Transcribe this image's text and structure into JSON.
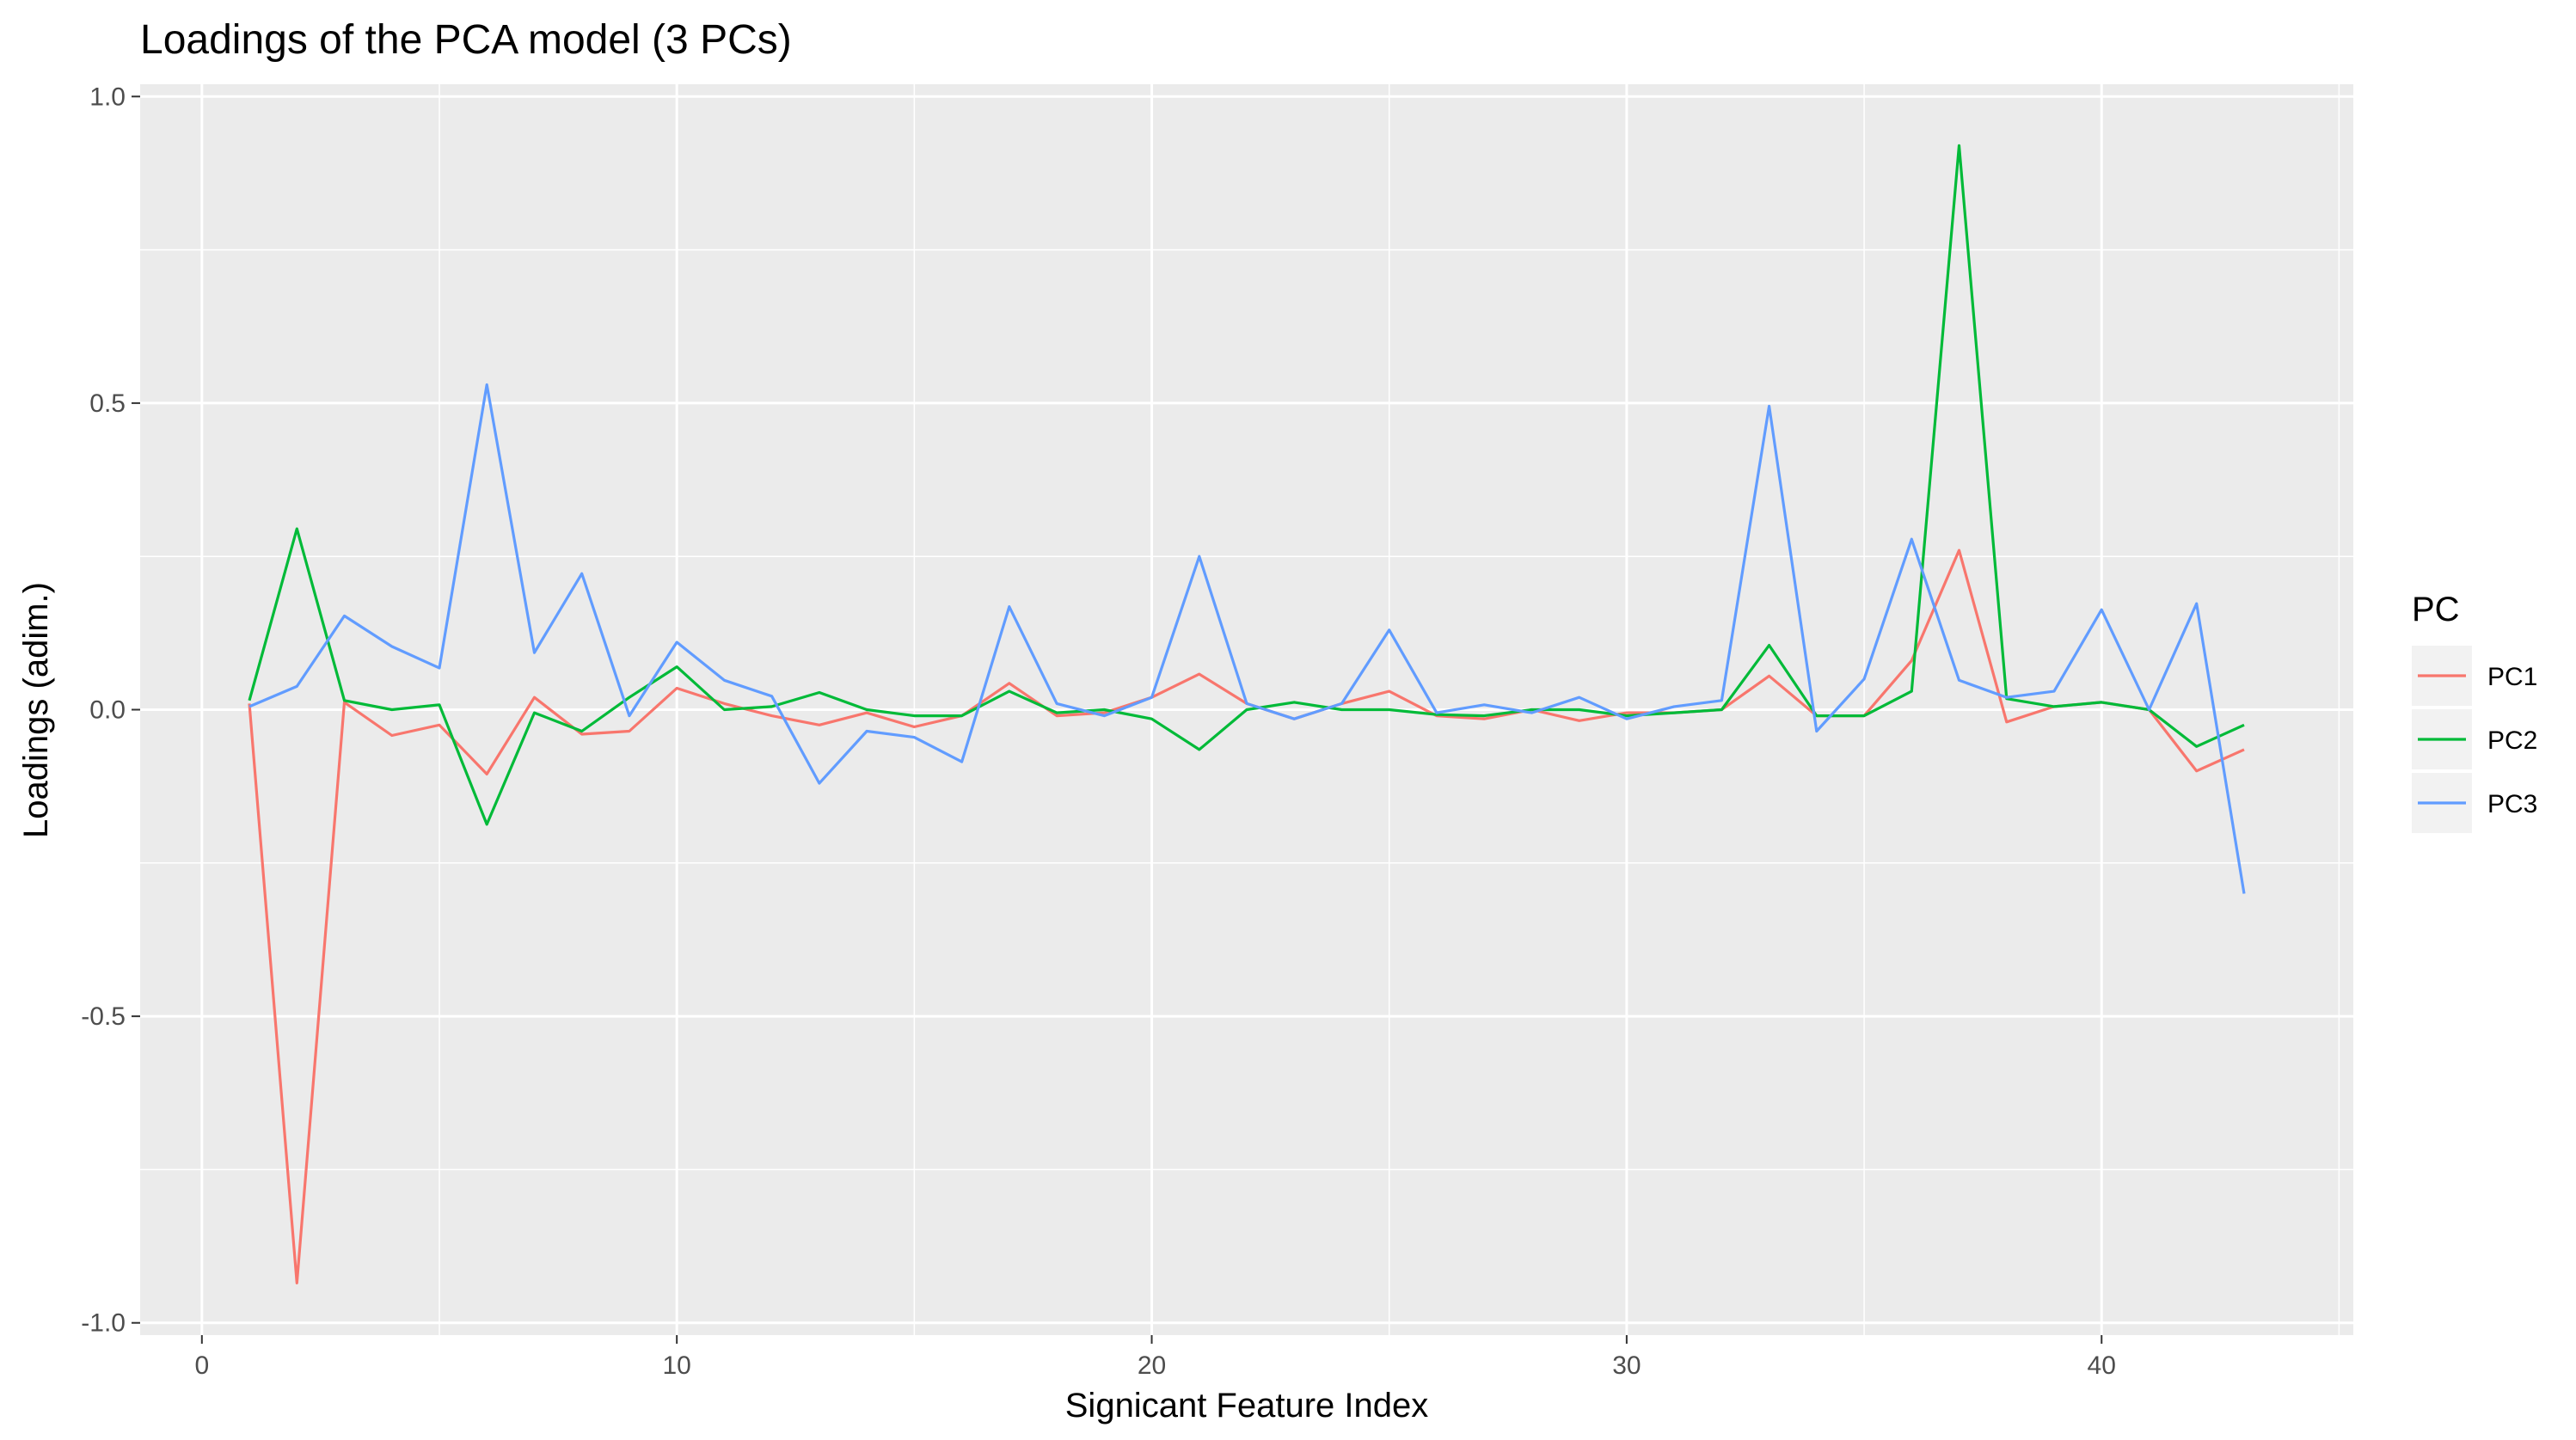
{
  "chart_data": {
    "type": "line",
    "title": "Loadings of the PCA model (3 PCs)",
    "xlabel": "Signicant Feature Index",
    "ylabel": "Loadings (adim.)",
    "xlim": [
      -1.3,
      45.3
    ],
    "ylim": [
      -1.02,
      1.02
    ],
    "x_ticks": [
      0,
      10,
      20,
      30,
      40
    ],
    "y_ticks": [
      -1.0,
      -0.5,
      0.0,
      0.5,
      1.0
    ],
    "x_tick_labels": [
      "0",
      "10",
      "20",
      "30",
      "40"
    ],
    "y_tick_labels": [
      "-1.0",
      "-0.5",
      "0.0",
      "0.5",
      "1.0"
    ],
    "grid": true,
    "legend": {
      "title": "PC",
      "position": "right"
    },
    "x": [
      1,
      2,
      3,
      4,
      5,
      6,
      7,
      8,
      9,
      10,
      11,
      12,
      13,
      14,
      15,
      16,
      17,
      18,
      19,
      20,
      21,
      22,
      23,
      24,
      25,
      26,
      27,
      28,
      29,
      30,
      31,
      32,
      33,
      34,
      35,
      36,
      37,
      38,
      39,
      40,
      41,
      42,
      43
    ],
    "series": [
      {
        "name": "PC1",
        "color": "#F8766D",
        "values": [
          0.01,
          -0.935,
          0.012,
          -0.042,
          -0.025,
          -0.105,
          0.02,
          -0.04,
          -0.035,
          0.035,
          0.01,
          -0.01,
          -0.025,
          -0.005,
          -0.028,
          -0.01,
          0.043,
          -0.01,
          -0.005,
          0.02,
          0.058,
          0.01,
          -0.015,
          0.01,
          0.03,
          -0.01,
          -0.015,
          0.0,
          -0.018,
          -0.005,
          -0.005,
          0.0,
          0.055,
          -0.01,
          -0.01,
          0.08,
          0.26,
          -0.02,
          0.005,
          0.012,
          0.0,
          -0.1,
          -0.065
        ]
      },
      {
        "name": "PC2",
        "color": "#00BA38",
        "values": [
          0.015,
          0.295,
          0.015,
          0.0,
          0.008,
          -0.187,
          -0.005,
          -0.035,
          0.02,
          0.07,
          0.0,
          0.005,
          0.028,
          0.0,
          -0.01,
          -0.01,
          0.03,
          -0.005,
          0.0,
          -0.015,
          -0.065,
          0.0,
          0.012,
          0.0,
          0.0,
          -0.008,
          -0.01,
          0.0,
          0.0,
          -0.01,
          -0.005,
          0.0,
          0.105,
          -0.01,
          -0.01,
          0.03,
          0.92,
          0.018,
          0.005,
          0.012,
          0.0,
          -0.06,
          -0.025
        ]
      },
      {
        "name": "PC3",
        "color": "#619CFF",
        "values": [
          0.005,
          0.038,
          0.153,
          0.103,
          0.068,
          0.53,
          0.093,
          0.222,
          -0.01,
          0.11,
          0.048,
          0.022,
          -0.12,
          -0.035,
          -0.045,
          -0.085,
          0.168,
          0.01,
          -0.01,
          0.02,
          0.25,
          0.01,
          -0.015,
          0.01,
          0.13,
          -0.005,
          0.008,
          -0.005,
          0.02,
          -0.015,
          0.005,
          0.015,
          0.495,
          -0.035,
          0.05,
          0.278,
          0.048,
          0.02,
          0.03,
          0.163,
          0.0,
          0.173,
          -0.3
        ]
      }
    ]
  }
}
